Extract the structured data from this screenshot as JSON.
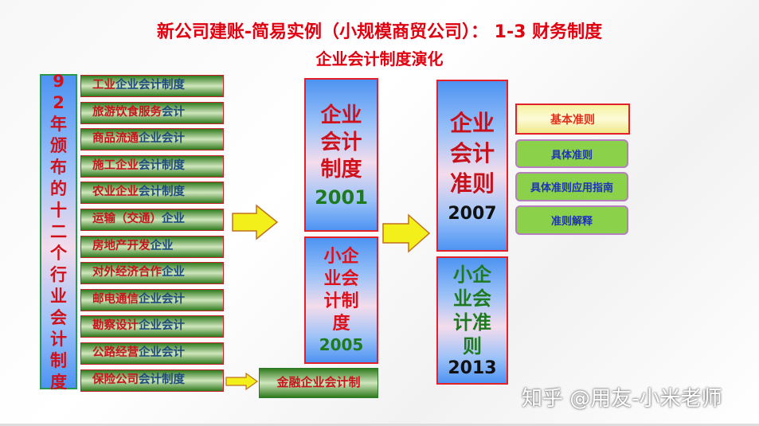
{
  "title": {
    "line1": "新公司建账-简易实例（小规模商贸公司）： 1-3 财务制度",
    "line2": "企业会计制度演化"
  },
  "left_label": "92年颁布的十二个行业会计制度",
  "industry_items": [
    {
      "red": "工业",
      "blue": "企业会计制度"
    },
    {
      "red": "旅游饮食服务",
      "blue": "会计"
    },
    {
      "red": "商品流通",
      "blue": "企业会计"
    },
    {
      "red": "施工企业",
      "blue": "会计制度"
    },
    {
      "red": "农业企业",
      "blue": "会计制度"
    },
    {
      "red": "运输（交通）",
      "blue": "企业"
    },
    {
      "red": "房地产开发",
      "blue": "企业"
    },
    {
      "red": "对外经济合作",
      "blue": "企业"
    },
    {
      "red": "邮电通信",
      "blue": "企业会计"
    },
    {
      "red": "勘察设计",
      "blue": "企业会计"
    },
    {
      "red": "公路经营",
      "blue": "企业会计"
    },
    {
      "red": "保险公司",
      "blue": "会计制度"
    }
  ],
  "finance_box": "金融企业会计制",
  "box_2001": {
    "text": "企业会计制度",
    "year": "2001"
  },
  "box_2005": {
    "text": "小企业会计制度",
    "year": "2005"
  },
  "box_2007": {
    "text": "企业会计准则",
    "year": "2007"
  },
  "box_2013": {
    "text": "小企业会计准则",
    "year": "2013"
  },
  "standards": [
    "基本准则",
    "具体准则",
    "具体准则应用指南",
    "准则解释"
  ],
  "watermark": "知乎 @用友-小米老师",
  "colors": {
    "red": "#e00010",
    "green": "#1e7a1e",
    "blue": "#1d4b80",
    "arrow": "#f2ef1a"
  }
}
